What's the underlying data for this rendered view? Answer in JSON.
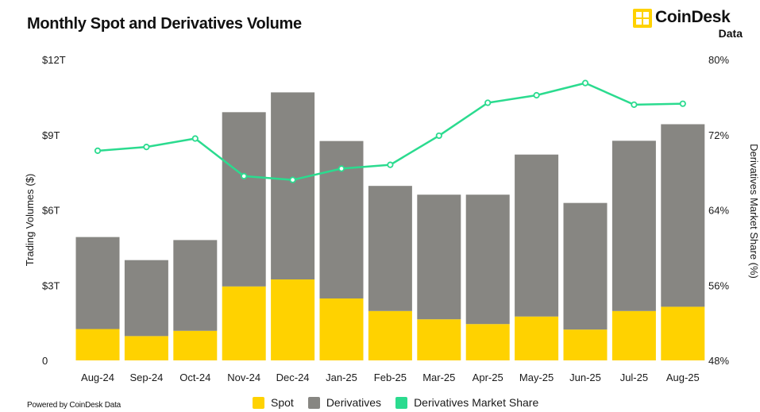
{
  "title": "Monthly Spot and Derivatives Volume",
  "brand": {
    "name": "CoinDesk",
    "sub": "Data"
  },
  "footer": "Powered by CoinDesk Data",
  "colors": {
    "spot": "#FFD200",
    "derivatives": "#878682",
    "share": "#2BDB8F",
    "text": "#1a1a1a"
  },
  "legend": [
    "Spot",
    "Derivatives",
    "Derivatives Market Share"
  ],
  "chart_data": {
    "type": "bar",
    "stacked": true,
    "categories": [
      "Aug-24",
      "Sep-24",
      "Oct-24",
      "Nov-24",
      "Dec-24",
      "Jan-25",
      "Feb-25",
      "Mar-25",
      "Apr-25",
      "May-25",
      "Jun-25",
      "Jul-25",
      "Aug-25"
    ],
    "series": [
      {
        "name": "Spot",
        "axis": "left",
        "values": [
          1.25,
          0.97,
          1.18,
          2.95,
          3.23,
          2.47,
          1.97,
          1.64,
          1.45,
          1.75,
          1.23,
          1.97,
          2.14
        ]
      },
      {
        "name": "Derivatives",
        "axis": "left",
        "values": [
          3.67,
          3.03,
          3.62,
          6.95,
          7.46,
          6.28,
          4.99,
          4.97,
          5.16,
          6.46,
          5.05,
          6.79,
          7.28
        ]
      },
      {
        "name": "Derivatives Market Share",
        "type": "line",
        "axis": "right",
        "values": [
          70.3,
          70.7,
          71.6,
          67.6,
          67.2,
          68.4,
          68.8,
          71.9,
          75.4,
          76.2,
          77.5,
          75.2,
          75.3
        ]
      }
    ],
    "ylabel": "Trading Volumes ($)",
    "ylabel_right": "Derivatives Market Share (%)",
    "ylim": [
      0,
      12
    ],
    "yticks": [
      "0",
      "$3T",
      "$6T",
      "$9T",
      "$12T"
    ],
    "ylim_right": [
      48,
      80
    ],
    "yticks_right": [
      "48%",
      "56%",
      "64%",
      "72%",
      "80%"
    ],
    "grid": false,
    "legend_position": "bottom"
  }
}
